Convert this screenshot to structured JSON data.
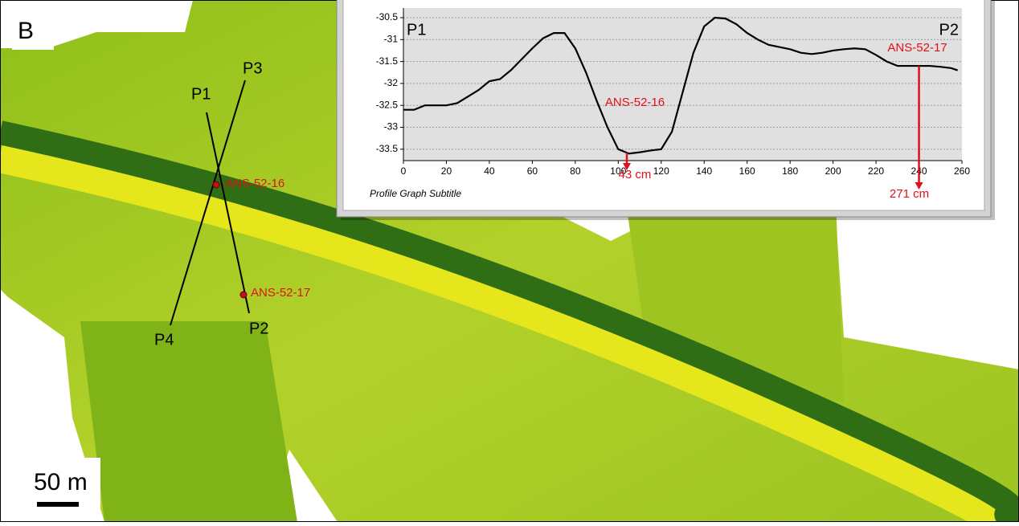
{
  "panel_label": "B",
  "map_labels": {
    "p1": "P1",
    "p2": "P2",
    "p3": "P3",
    "p4": "P4",
    "core_1": "ANS-52-16",
    "core_2": "ANS-52-17",
    "scale": "50 m"
  },
  "chart_data": {
    "type": "line",
    "subtitle": "Profile Graph Subtitle",
    "start_label": "P1",
    "end_label": "P2",
    "x": [
      0,
      5,
      10,
      15,
      20,
      25,
      30,
      35,
      40,
      45,
      50,
      55,
      60,
      65,
      70,
      75,
      80,
      85,
      90,
      95,
      100,
      105,
      110,
      115,
      120,
      125,
      130,
      135,
      140,
      145,
      150,
      155,
      160,
      165,
      170,
      175,
      180,
      185,
      190,
      195,
      200,
      205,
      210,
      215,
      220,
      225,
      230,
      235,
      240,
      245,
      250,
      255,
      258
    ],
    "series": [
      {
        "color": "#000000",
        "values": [
          -32.6,
          -32.6,
          -32.5,
          -32.5,
          -32.5,
          -32.45,
          -32.3,
          -32.15,
          -31.95,
          -31.9,
          -31.7,
          -31.45,
          -31.2,
          -30.97,
          -30.85,
          -30.85,
          -31.2,
          -31.75,
          -32.4,
          -33.0,
          -33.5,
          -33.6,
          -33.57,
          -33.53,
          -33.5,
          -33.1,
          -32.2,
          -31.3,
          -30.7,
          -30.5,
          -30.52,
          -30.65,
          -30.85,
          -31.0,
          -31.12,
          -31.17,
          -31.22,
          -31.3,
          -31.33,
          -31.3,
          -31.25,
          -31.22,
          -31.2,
          -31.22,
          -31.35,
          -31.5,
          -31.6,
          -31.6,
          -31.6,
          -31.6,
          -31.62,
          -31.65,
          -31.7
        ]
      }
    ],
    "xlim": [
      0,
      260
    ],
    "xticks": [
      0,
      20,
      40,
      60,
      80,
      100,
      120,
      140,
      160,
      180,
      200,
      220,
      240,
      260
    ],
    "ylim": [
      -33.76,
      -30.28
    ],
    "yticks": [
      -33.5,
      -33,
      -32.5,
      -32,
      -31.5,
      -31,
      -30.5
    ],
    "grid": true,
    "annotations": [
      {
        "label": "ANS-52-16",
        "x": 104,
        "depth_label": "43 cm",
        "color": "#e0101a"
      },
      {
        "label": "ANS-52-17",
        "x": 240,
        "depth_label": "271 cm",
        "color": "#e0101a"
      }
    ]
  }
}
